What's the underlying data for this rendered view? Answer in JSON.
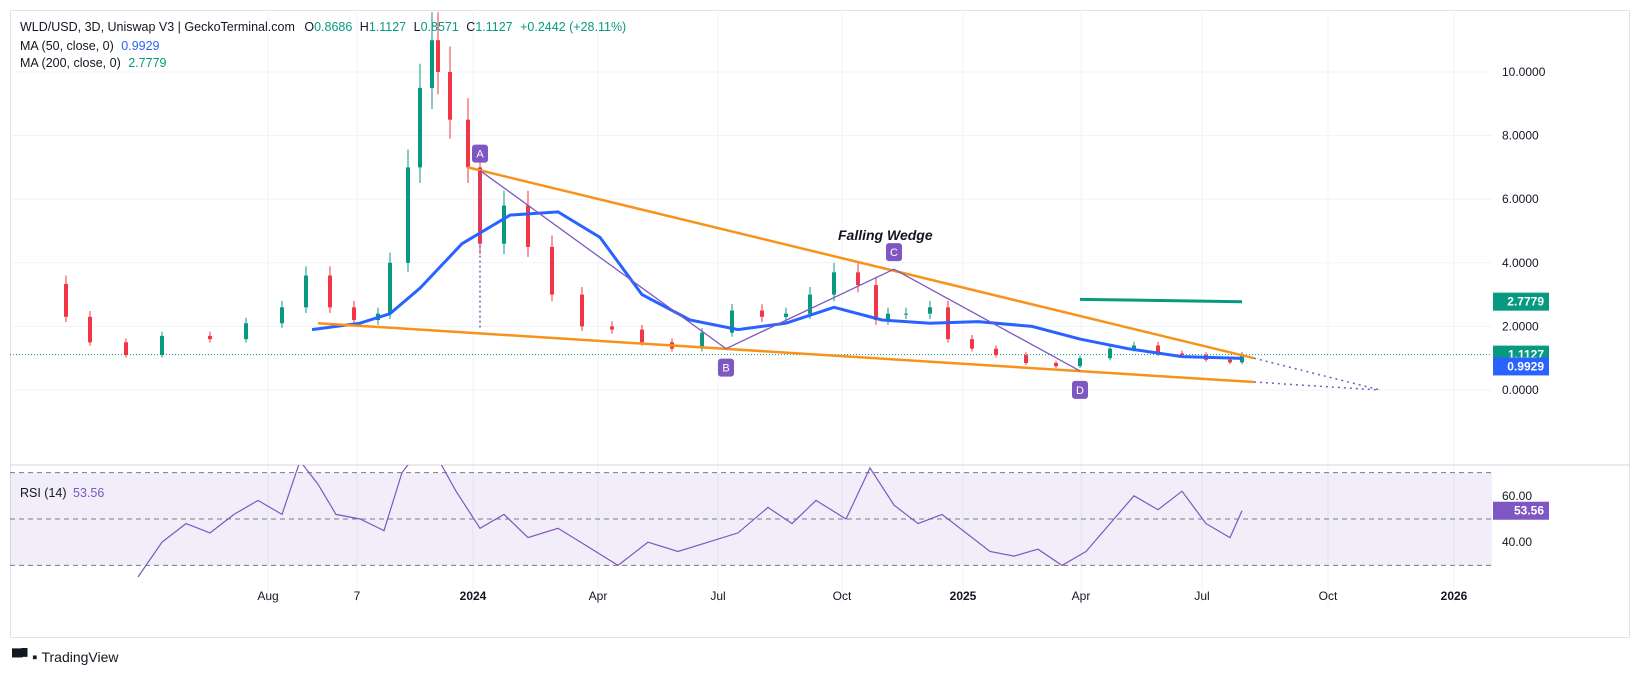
{
  "header": {
    "symbol": "WLD/USD, 3D, Uniswap V3 | GeckoTerminal.com",
    "o_label": "O",
    "o": "0.8686",
    "h_label": "H",
    "h": "1.1127",
    "l_label": "L",
    "l": "0.8571",
    "c_label": "C",
    "c": "1.1127",
    "change": "+0.2442 (+28.11%)"
  },
  "indicators": {
    "ma50_label": "MA (50, close, 0)",
    "ma50_value": "0.9929",
    "ma200_label": "MA (200, close, 0)",
    "ma200_value": "2.7779",
    "rsi_label": "RSI (14)",
    "rsi_value": "53.56"
  },
  "price_axis": [
    "10.0000",
    "8.0000",
    "6.0000",
    "4.0000",
    "2.0000",
    "0.0000"
  ],
  "price_badges": {
    "last": "1.1127",
    "ma50": "0.9929",
    "ma200": "2.7779"
  },
  "rsi_axis": [
    "60.00",
    "40.00"
  ],
  "time_axis": [
    "Aug",
    "7",
    "2024",
    "Apr",
    "Jul",
    "Oct",
    "2025",
    "Apr",
    "Jul",
    "Oct",
    "2026"
  ],
  "annotations": {
    "pattern": "Falling Wedge",
    "points": [
      "A",
      "B",
      "C",
      "D"
    ]
  },
  "colors": {
    "up": "#089981",
    "down": "#f23645",
    "ma50": "#2962ff",
    "ma200": "#089981",
    "rsi": "#7e57c2",
    "wedge": "#f7931a",
    "wave": "#7e57c2"
  },
  "footer": {
    "brand": "TradingView"
  },
  "chart_data": {
    "type": "line",
    "title": "WLD/USD, 3D, Uniswap V3 | GeckoTerminal.com",
    "price_ylim": [
      0,
      11.5
    ],
    "rsi_ylim": [
      20,
      80
    ],
    "price": {
      "t": [
        2023.56,
        2023.6,
        2023.66,
        2023.72,
        2023.8,
        2023.86,
        2023.92,
        2023.96,
        2024.0,
        2024.04,
        2024.08,
        2024.1,
        2024.13,
        2024.15,
        2024.17,
        2024.18,
        2024.2,
        2024.23,
        2024.25,
        2024.29,
        2024.33,
        2024.37,
        2024.42,
        2024.47,
        2024.52,
        2024.57,
        2024.62,
        2024.67,
        2024.72,
        2024.76,
        2024.8,
        2024.84,
        2024.88,
        2024.91,
        2024.93,
        2024.96,
        2025.0,
        2025.03,
        2025.07,
        2025.11,
        2025.16,
        2025.21,
        2025.25,
        2025.3,
        2025.34,
        2025.38,
        2025.42,
        2025.46,
        2025.5,
        2025.52
      ],
      "close": [
        2.3,
        1.5,
        1.1,
        1.7,
        1.6,
        2.1,
        2.6,
        3.6,
        2.6,
        2.2,
        2.4,
        4.0,
        7.0,
        9.5,
        11.0,
        10.0,
        8.5,
        7.0,
        4.6,
        5.8,
        4.5,
        3.0,
        2.0,
        1.9,
        1.5,
        1.3,
        1.8,
        2.5,
        2.3,
        2.4,
        3.0,
        3.7,
        3.3,
        2.2,
        2.4,
        2.4,
        2.6,
        1.6,
        1.3,
        1.1,
        0.85,
        0.75,
        1.0,
        1.3,
        1.4,
        1.15,
        1.1,
        0.95,
        0.87,
        1.11
      ]
    },
    "ma50": {
      "t": [
        2023.97,
        2024.05,
        2024.1,
        2024.15,
        2024.22,
        2024.3,
        2024.38,
        2024.45,
        2024.52,
        2024.6,
        2024.68,
        2024.76,
        2024.84,
        2024.92,
        2025.0,
        2025.08,
        2025.17,
        2025.25,
        2025.33,
        2025.42,
        2025.52
      ],
      "values": [
        1.9,
        2.1,
        2.4,
        3.2,
        4.6,
        5.5,
        5.6,
        4.8,
        3.0,
        2.2,
        1.9,
        2.1,
        2.6,
        2.2,
        2.1,
        2.15,
        2.0,
        1.6,
        1.3,
        1.05,
        0.9929
      ]
    },
    "ma200": {
      "t": [
        2025.25,
        2025.52
      ],
      "values": [
        2.85,
        2.7779
      ]
    },
    "rsi": {
      "t": [
        2023.68,
        2023.72,
        2023.76,
        2023.8,
        2023.84,
        2023.88,
        2023.92,
        2023.95,
        2023.98,
        2024.01,
        2024.05,
        2024.09,
        2024.12,
        2024.15,
        2024.18,
        2024.21,
        2024.25,
        2024.29,
        2024.33,
        2024.38,
        2024.43,
        2024.48,
        2024.53,
        2024.58,
        2024.63,
        2024.68,
        2024.73,
        2024.77,
        2024.81,
        2024.86,
        2024.9,
        2024.94,
        2024.98,
        2025.02,
        2025.06,
        2025.1,
        2025.14,
        2025.18,
        2025.22,
        2025.26,
        2025.3,
        2025.34,
        2025.38,
        2025.42,
        2025.46,
        2025.5,
        2025.52
      ],
      "values": [
        25,
        40,
        48,
        44,
        52,
        58,
        52,
        75,
        65,
        52,
        50,
        45,
        70,
        80,
        76,
        62,
        46,
        52,
        42,
        46,
        38,
        30,
        40,
        36,
        40,
        44,
        55,
        48,
        58,
        50,
        72,
        56,
        48,
        52,
        44,
        36,
        34,
        37,
        30,
        36,
        48,
        60,
        54,
        62,
        48,
        42,
        53.56
      ]
    },
    "wedge_upper": {
      "t": [
        2024.23,
        2025.54,
        2025.75
      ],
      "values": [
        7.0,
        1.0,
        0.0
      ]
    },
    "wedge_lower": {
      "t": [
        2023.98,
        2025.54
      ],
      "values": [
        2.1,
        0.25
      ]
    },
    "waves": [
      {
        "label": "A",
        "t": 2024.25,
        "value": 6.9
      },
      {
        "label": "B",
        "t": 2024.66,
        "value": 1.3
      },
      {
        "label": "C",
        "t": 2024.94,
        "value": 3.8
      },
      {
        "label": "D",
        "t": 2025.25,
        "value": 0.6
      }
    ],
    "legend": [
      "MA (50, close, 0)",
      "MA (200, close, 0)",
      "RSI (14)"
    ]
  }
}
